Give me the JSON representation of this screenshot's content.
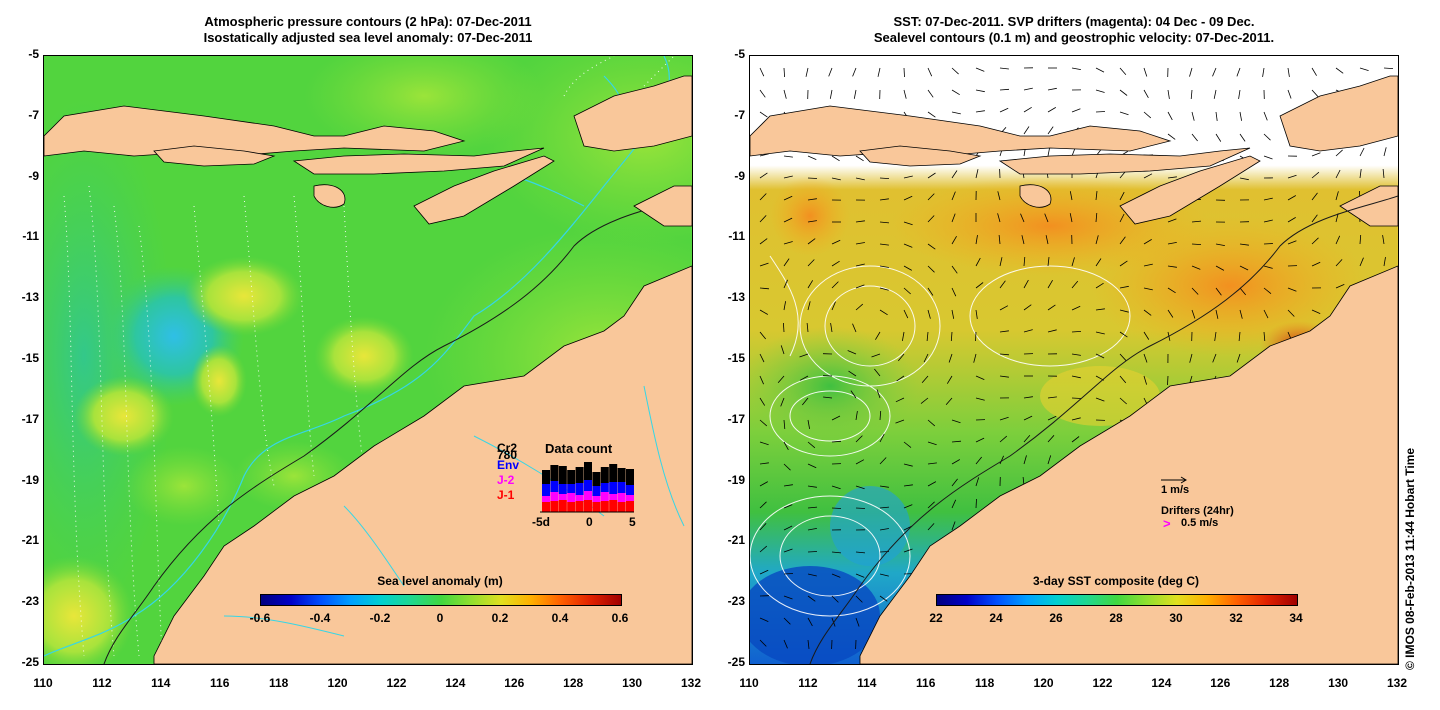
{
  "left_panel": {
    "title_line1": "Atmospheric pressure contours (2 hPa): 07-Dec-2011",
    "title_line2": "Isostatically adjusted sea level anomaly: 07-Dec-2011",
    "y_ticks": [
      "-5",
      "-7",
      "-9",
      "-11",
      "-13",
      "-15",
      "-17",
      "-19",
      "-21",
      "-23",
      "-25"
    ],
    "x_ticks": [
      "110",
      "112",
      "114",
      "116",
      "118",
      "120",
      "122",
      "124",
      "126",
      "128",
      "130",
      "132"
    ],
    "colorbar": {
      "title": "Sea level anomaly (m)",
      "labels": [
        "-0.6",
        "-0.4",
        "-0.2",
        "0",
        "0.2",
        "0.4",
        "0.6"
      ]
    },
    "data_count": {
      "title": "Data count",
      "legend": [
        {
          "label": "Cr2",
          "color": "#000000"
        },
        {
          "label": "780",
          "color": "#000000"
        },
        {
          "label": "Env",
          "color": "#0000ff"
        },
        {
          "label": "J-2",
          "color": "#ff00ff"
        },
        {
          "label": "J-1",
          "color": "#ff0000"
        }
      ],
      "axis_labels": [
        "-5d",
        "0",
        "5"
      ]
    }
  },
  "right_panel": {
    "title_line1": "SST: 07-Dec-2011. SVP drifters (magenta): 04 Dec - 09 Dec.",
    "title_line2": "Sealevel contours (0.1 m) and geostrophic velocity: 07-Dec-2011.",
    "y_ticks": [
      "-5",
      "-7",
      "-9",
      "-11",
      "-13",
      "-15",
      "-17",
      "-19",
      "-21",
      "-23",
      "-25"
    ],
    "x_ticks": [
      "110",
      "112",
      "114",
      "116",
      "118",
      "120",
      "122",
      "124",
      "126",
      "128",
      "130",
      "132"
    ],
    "colorbar": {
      "title": "3-day SST composite (deg C)",
      "labels": [
        "22",
        "24",
        "26",
        "28",
        "30",
        "32",
        "34"
      ]
    },
    "velocity_scale": "1 m/s",
    "drifters_label": "Drifters (24hr)",
    "drifters_scale": "0.5 m/s",
    "drifter_symbol": ">"
  },
  "credit": "© IMOS 08-Feb-2013 11:44 Hobart Time",
  "colors": {
    "land": "#f9c79a",
    "sla_green": "#4fd53c",
    "coast": "#000000",
    "bathy": "#36d6e6"
  }
}
